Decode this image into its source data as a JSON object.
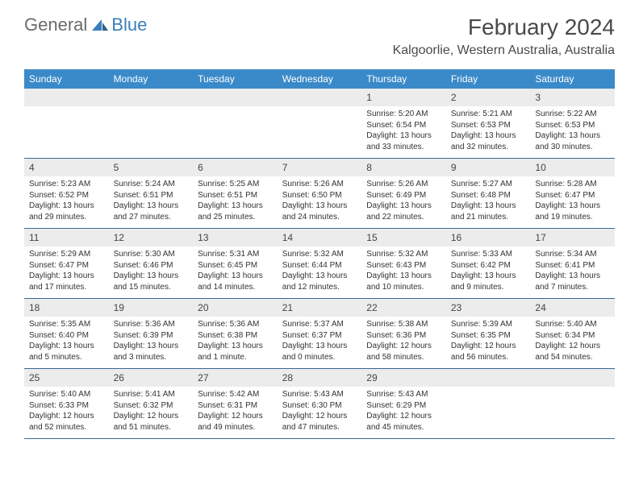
{
  "logo": {
    "word1": "General",
    "word2": "Blue"
  },
  "title": "February 2024",
  "location": "Kalgoorlie, Western Australia, Australia",
  "colors": {
    "header_bg": "#3a8ac9",
    "header_text": "#ffffff",
    "border": "#3a6a95",
    "daynum_bg": "#ececec",
    "logo_gray": "#6b6b6b",
    "logo_blue": "#3a7fbb"
  },
  "weekdays": [
    "Sunday",
    "Monday",
    "Tuesday",
    "Wednesday",
    "Thursday",
    "Friday",
    "Saturday"
  ],
  "weeks": [
    [
      null,
      null,
      null,
      null,
      {
        "n": "1",
        "sr": "Sunrise: 5:20 AM",
        "ss": "Sunset: 6:54 PM",
        "d1": "Daylight: 13 hours",
        "d2": "and 33 minutes."
      },
      {
        "n": "2",
        "sr": "Sunrise: 5:21 AM",
        "ss": "Sunset: 6:53 PM",
        "d1": "Daylight: 13 hours",
        "d2": "and 32 minutes."
      },
      {
        "n": "3",
        "sr": "Sunrise: 5:22 AM",
        "ss": "Sunset: 6:53 PM",
        "d1": "Daylight: 13 hours",
        "d2": "and 30 minutes."
      }
    ],
    [
      {
        "n": "4",
        "sr": "Sunrise: 5:23 AM",
        "ss": "Sunset: 6:52 PM",
        "d1": "Daylight: 13 hours",
        "d2": "and 29 minutes."
      },
      {
        "n": "5",
        "sr": "Sunrise: 5:24 AM",
        "ss": "Sunset: 6:51 PM",
        "d1": "Daylight: 13 hours",
        "d2": "and 27 minutes."
      },
      {
        "n": "6",
        "sr": "Sunrise: 5:25 AM",
        "ss": "Sunset: 6:51 PM",
        "d1": "Daylight: 13 hours",
        "d2": "and 25 minutes."
      },
      {
        "n": "7",
        "sr": "Sunrise: 5:26 AM",
        "ss": "Sunset: 6:50 PM",
        "d1": "Daylight: 13 hours",
        "d2": "and 24 minutes."
      },
      {
        "n": "8",
        "sr": "Sunrise: 5:26 AM",
        "ss": "Sunset: 6:49 PM",
        "d1": "Daylight: 13 hours",
        "d2": "and 22 minutes."
      },
      {
        "n": "9",
        "sr": "Sunrise: 5:27 AM",
        "ss": "Sunset: 6:48 PM",
        "d1": "Daylight: 13 hours",
        "d2": "and 21 minutes."
      },
      {
        "n": "10",
        "sr": "Sunrise: 5:28 AM",
        "ss": "Sunset: 6:47 PM",
        "d1": "Daylight: 13 hours",
        "d2": "and 19 minutes."
      }
    ],
    [
      {
        "n": "11",
        "sr": "Sunrise: 5:29 AM",
        "ss": "Sunset: 6:47 PM",
        "d1": "Daylight: 13 hours",
        "d2": "and 17 minutes."
      },
      {
        "n": "12",
        "sr": "Sunrise: 5:30 AM",
        "ss": "Sunset: 6:46 PM",
        "d1": "Daylight: 13 hours",
        "d2": "and 15 minutes."
      },
      {
        "n": "13",
        "sr": "Sunrise: 5:31 AM",
        "ss": "Sunset: 6:45 PM",
        "d1": "Daylight: 13 hours",
        "d2": "and 14 minutes."
      },
      {
        "n": "14",
        "sr": "Sunrise: 5:32 AM",
        "ss": "Sunset: 6:44 PM",
        "d1": "Daylight: 13 hours",
        "d2": "and 12 minutes."
      },
      {
        "n": "15",
        "sr": "Sunrise: 5:32 AM",
        "ss": "Sunset: 6:43 PM",
        "d1": "Daylight: 13 hours",
        "d2": "and 10 minutes."
      },
      {
        "n": "16",
        "sr": "Sunrise: 5:33 AM",
        "ss": "Sunset: 6:42 PM",
        "d1": "Daylight: 13 hours",
        "d2": "and 9 minutes."
      },
      {
        "n": "17",
        "sr": "Sunrise: 5:34 AM",
        "ss": "Sunset: 6:41 PM",
        "d1": "Daylight: 13 hours",
        "d2": "and 7 minutes."
      }
    ],
    [
      {
        "n": "18",
        "sr": "Sunrise: 5:35 AM",
        "ss": "Sunset: 6:40 PM",
        "d1": "Daylight: 13 hours",
        "d2": "and 5 minutes."
      },
      {
        "n": "19",
        "sr": "Sunrise: 5:36 AM",
        "ss": "Sunset: 6:39 PM",
        "d1": "Daylight: 13 hours",
        "d2": "and 3 minutes."
      },
      {
        "n": "20",
        "sr": "Sunrise: 5:36 AM",
        "ss": "Sunset: 6:38 PM",
        "d1": "Daylight: 13 hours",
        "d2": "and 1 minute."
      },
      {
        "n": "21",
        "sr": "Sunrise: 5:37 AM",
        "ss": "Sunset: 6:37 PM",
        "d1": "Daylight: 13 hours",
        "d2": "and 0 minutes."
      },
      {
        "n": "22",
        "sr": "Sunrise: 5:38 AM",
        "ss": "Sunset: 6:36 PM",
        "d1": "Daylight: 12 hours",
        "d2": "and 58 minutes."
      },
      {
        "n": "23",
        "sr": "Sunrise: 5:39 AM",
        "ss": "Sunset: 6:35 PM",
        "d1": "Daylight: 12 hours",
        "d2": "and 56 minutes."
      },
      {
        "n": "24",
        "sr": "Sunrise: 5:40 AM",
        "ss": "Sunset: 6:34 PM",
        "d1": "Daylight: 12 hours",
        "d2": "and 54 minutes."
      }
    ],
    [
      {
        "n": "25",
        "sr": "Sunrise: 5:40 AM",
        "ss": "Sunset: 6:33 PM",
        "d1": "Daylight: 12 hours",
        "d2": "and 52 minutes."
      },
      {
        "n": "26",
        "sr": "Sunrise: 5:41 AM",
        "ss": "Sunset: 6:32 PM",
        "d1": "Daylight: 12 hours",
        "d2": "and 51 minutes."
      },
      {
        "n": "27",
        "sr": "Sunrise: 5:42 AM",
        "ss": "Sunset: 6:31 PM",
        "d1": "Daylight: 12 hours",
        "d2": "and 49 minutes."
      },
      {
        "n": "28",
        "sr": "Sunrise: 5:43 AM",
        "ss": "Sunset: 6:30 PM",
        "d1": "Daylight: 12 hours",
        "d2": "and 47 minutes."
      },
      {
        "n": "29",
        "sr": "Sunrise: 5:43 AM",
        "ss": "Sunset: 6:29 PM",
        "d1": "Daylight: 12 hours",
        "d2": "and 45 minutes."
      },
      null,
      null
    ]
  ]
}
